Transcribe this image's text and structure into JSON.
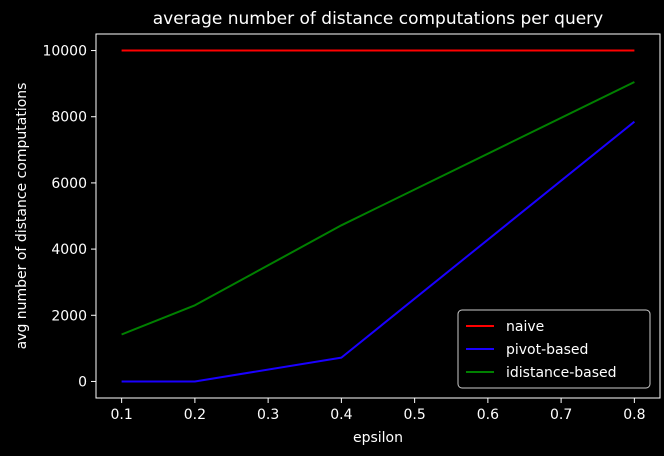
{
  "chart_data": {
    "type": "line",
    "title": "average number of distance computations per query",
    "xlabel": "epsilon",
    "ylabel": "avg number of distance computations",
    "xlim": [
      0.065,
      0.835
    ],
    "ylim": [
      -500,
      10500
    ],
    "xticks": [
      0.1,
      0.2,
      0.3,
      0.4,
      0.5,
      0.6,
      0.7,
      0.8
    ],
    "xtick_labels": [
      "0.1",
      "0.2",
      "0.3",
      "0.4",
      "0.5",
      "0.6",
      "0.7",
      "0.8"
    ],
    "yticks": [
      0,
      2000,
      4000,
      6000,
      8000,
      10000
    ],
    "ytick_labels": [
      "0",
      "2000",
      "4000",
      "6000",
      "8000",
      "10000"
    ],
    "grid": false,
    "legend_position": "lower-right",
    "x": [
      0.1,
      0.2,
      0.4,
      0.8
    ],
    "series": [
      {
        "name": "naive",
        "color": "#ff0000",
        "values": [
          10000,
          10000,
          10000,
          10000
        ]
      },
      {
        "name": "pivot-based",
        "color": "#1a00ff",
        "values": [
          0,
          0,
          720,
          7850
        ]
      },
      {
        "name": "idistance-based",
        "color": "#008000",
        "values": [
          1420,
          2300,
          4720,
          9050
        ]
      }
    ],
    "colors": {
      "background": "#000000",
      "axes": "#ffffff",
      "text": "#ffffff"
    }
  }
}
